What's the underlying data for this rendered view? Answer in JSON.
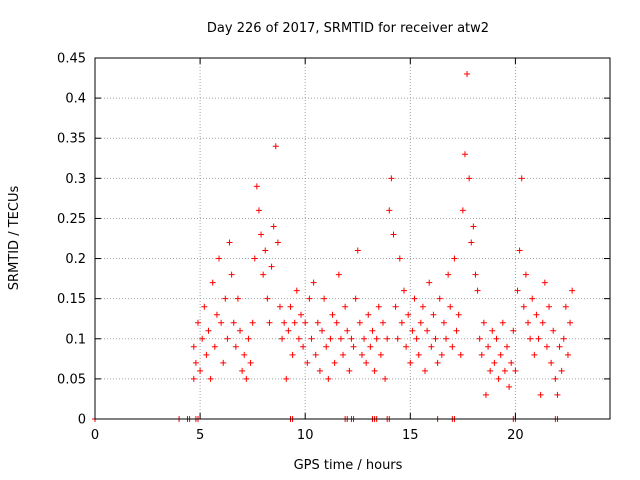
{
  "chart_data": {
    "type": "scatter",
    "title": "Day 226 of 2017, SRMTID for receiver atw2",
    "xlabel": "GPS time / hours",
    "ylabel": "SRMTID / TECUs",
    "xlim": [
      0,
      24.5
    ],
    "ylim": [
      0,
      0.45
    ],
    "x_ticks": [
      0,
      5,
      10,
      15,
      20
    ],
    "y_ticks": [
      0,
      0.05,
      0.1,
      0.15,
      0.2,
      0.25,
      0.3,
      0.35,
      0.4,
      0.45
    ],
    "x_tick_labels": [
      "0",
      "5",
      "10",
      "15",
      "20"
    ],
    "y_tick_labels": [
      "0",
      "0.05",
      "0.1",
      "0.15",
      "0.2",
      "0.25",
      "0.3",
      "0.35",
      "0.4",
      "0.45"
    ],
    "grid": true,
    "marker": "+",
    "color": "#ff0000",
    "series": [
      {
        "name": "SRMTID",
        "points": [
          [
            0.0,
            0.0
          ],
          [
            4.0,
            0.0
          ],
          [
            4.4,
            0.0
          ],
          [
            4.5,
            0.0
          ],
          [
            4.8,
            0.0
          ],
          [
            4.9,
            0.0
          ],
          [
            9.3,
            0.0
          ],
          [
            9.4,
            0.0
          ],
          [
            11.9,
            0.0
          ],
          [
            12.0,
            0.0
          ],
          [
            12.2,
            0.0
          ],
          [
            12.3,
            0.0
          ],
          [
            13.2,
            0.0
          ],
          [
            13.3,
            0.0
          ],
          [
            13.4,
            0.0
          ],
          [
            13.9,
            0.0
          ],
          [
            14.0,
            0.0
          ],
          [
            16.3,
            0.0
          ],
          [
            17.0,
            0.0
          ],
          [
            17.1,
            0.0
          ],
          [
            19.9,
            0.0
          ],
          [
            20.0,
            0.0
          ],
          [
            21.9,
            0.0
          ],
          [
            22.0,
            0.0
          ],
          [
            4.7,
            0.05
          ],
          [
            4.7,
            0.09
          ],
          [
            4.8,
            0.07
          ],
          [
            4.9,
            0.12
          ],
          [
            5.0,
            0.06
          ],
          [
            5.1,
            0.1
          ],
          [
            5.2,
            0.14
          ],
          [
            5.3,
            0.08
          ],
          [
            5.4,
            0.11
          ],
          [
            5.5,
            0.05
          ],
          [
            5.6,
            0.17
          ],
          [
            5.7,
            0.09
          ],
          [
            5.8,
            0.13
          ],
          [
            5.9,
            0.2
          ],
          [
            6.0,
            0.12
          ],
          [
            6.1,
            0.07
          ],
          [
            6.2,
            0.15
          ],
          [
            6.3,
            0.1
          ],
          [
            6.4,
            0.22
          ],
          [
            6.5,
            0.18
          ],
          [
            6.6,
            0.12
          ],
          [
            6.7,
            0.09
          ],
          [
            6.8,
            0.15
          ],
          [
            6.9,
            0.11
          ],
          [
            7.0,
            0.06
          ],
          [
            7.1,
            0.08
          ],
          [
            7.2,
            0.05
          ],
          [
            7.3,
            0.1
          ],
          [
            7.4,
            0.07
          ],
          [
            7.5,
            0.12
          ],
          [
            7.6,
            0.2
          ],
          [
            7.7,
            0.29
          ],
          [
            7.8,
            0.26
          ],
          [
            7.9,
            0.23
          ],
          [
            8.0,
            0.18
          ],
          [
            8.1,
            0.21
          ],
          [
            8.2,
            0.15
          ],
          [
            8.3,
            0.12
          ],
          [
            8.4,
            0.19
          ],
          [
            8.5,
            0.24
          ],
          [
            8.6,
            0.34
          ],
          [
            8.7,
            0.22
          ],
          [
            8.8,
            0.14
          ],
          [
            8.9,
            0.1
          ],
          [
            9.0,
            0.12
          ],
          [
            9.1,
            0.05
          ],
          [
            9.2,
            0.11
          ],
          [
            9.3,
            0.14
          ],
          [
            9.4,
            0.08
          ],
          [
            9.5,
            0.12
          ],
          [
            9.6,
            0.16
          ],
          [
            9.7,
            0.1
          ],
          [
            9.8,
            0.13
          ],
          [
            9.9,
            0.09
          ],
          [
            10.0,
            0.12
          ],
          [
            10.1,
            0.07
          ],
          [
            10.2,
            0.15
          ],
          [
            10.3,
            0.1
          ],
          [
            10.4,
            0.17
          ],
          [
            10.5,
            0.08
          ],
          [
            10.6,
            0.12
          ],
          [
            10.7,
            0.06
          ],
          [
            10.8,
            0.11
          ],
          [
            10.9,
            0.15
          ],
          [
            11.0,
            0.09
          ],
          [
            11.1,
            0.05
          ],
          [
            11.2,
            0.1
          ],
          [
            11.3,
            0.13
          ],
          [
            11.4,
            0.07
          ],
          [
            11.5,
            0.12
          ],
          [
            11.6,
            0.18
          ],
          [
            11.7,
            0.1
          ],
          [
            11.8,
            0.08
          ],
          [
            11.9,
            0.14
          ],
          [
            12.0,
            0.11
          ],
          [
            12.1,
            0.06
          ],
          [
            12.2,
            0.1
          ],
          [
            12.3,
            0.09
          ],
          [
            12.4,
            0.15
          ],
          [
            12.5,
            0.21
          ],
          [
            12.6,
            0.12
          ],
          [
            12.7,
            0.08
          ],
          [
            12.8,
            0.1
          ],
          [
            12.9,
            0.07
          ],
          [
            13.0,
            0.13
          ],
          [
            13.1,
            0.09
          ],
          [
            13.2,
            0.11
          ],
          [
            13.3,
            0.06
          ],
          [
            13.4,
            0.1
          ],
          [
            13.5,
            0.14
          ],
          [
            13.6,
            0.08
          ],
          [
            13.7,
            0.12
          ],
          [
            13.8,
            0.05
          ],
          [
            13.9,
            0.1
          ],
          [
            14.0,
            0.26
          ],
          [
            14.1,
            0.3
          ],
          [
            14.2,
            0.23
          ],
          [
            14.3,
            0.14
          ],
          [
            14.4,
            0.1
          ],
          [
            14.5,
            0.2
          ],
          [
            14.6,
            0.12
          ],
          [
            14.7,
            0.16
          ],
          [
            14.8,
            0.09
          ],
          [
            14.9,
            0.13
          ],
          [
            15.0,
            0.07
          ],
          [
            15.1,
            0.11
          ],
          [
            15.2,
            0.15
          ],
          [
            15.3,
            0.1
          ],
          [
            15.4,
            0.08
          ],
          [
            15.5,
            0.12
          ],
          [
            15.6,
            0.14
          ],
          [
            15.7,
            0.06
          ],
          [
            15.8,
            0.11
          ],
          [
            15.9,
            0.17
          ],
          [
            16.0,
            0.09
          ],
          [
            16.1,
            0.13
          ],
          [
            16.2,
            0.1
          ],
          [
            16.3,
            0.07
          ],
          [
            16.4,
            0.15
          ],
          [
            16.5,
            0.08
          ],
          [
            16.6,
            0.12
          ],
          [
            16.7,
            0.1
          ],
          [
            16.8,
            0.18
          ],
          [
            16.9,
            0.14
          ],
          [
            17.0,
            0.09
          ],
          [
            17.1,
            0.2
          ],
          [
            17.2,
            0.11
          ],
          [
            17.3,
            0.13
          ],
          [
            17.4,
            0.08
          ],
          [
            17.5,
            0.26
          ],
          [
            17.6,
            0.33
          ],
          [
            17.7,
            0.43
          ],
          [
            17.8,
            0.3
          ],
          [
            17.9,
            0.22
          ],
          [
            18.0,
            0.24
          ],
          [
            18.1,
            0.18
          ],
          [
            18.2,
            0.16
          ],
          [
            18.3,
            0.1
          ],
          [
            18.4,
            0.08
          ],
          [
            18.5,
            0.12
          ],
          [
            18.6,
            0.03
          ],
          [
            18.7,
            0.09
          ],
          [
            18.8,
            0.06
          ],
          [
            18.9,
            0.11
          ],
          [
            19.0,
            0.07
          ],
          [
            19.1,
            0.1
          ],
          [
            19.2,
            0.05
          ],
          [
            19.3,
            0.08
          ],
          [
            19.4,
            0.12
          ],
          [
            19.5,
            0.06
          ],
          [
            19.6,
            0.09
          ],
          [
            19.7,
            0.04
          ],
          [
            19.8,
            0.07
          ],
          [
            19.9,
            0.11
          ],
          [
            20.0,
            0.06
          ],
          [
            20.1,
            0.16
          ],
          [
            20.2,
            0.21
          ],
          [
            20.3,
            0.3
          ],
          [
            20.4,
            0.14
          ],
          [
            20.5,
            0.18
          ],
          [
            20.6,
            0.12
          ],
          [
            20.7,
            0.1
          ],
          [
            20.8,
            0.15
          ],
          [
            20.9,
            0.08
          ],
          [
            21.0,
            0.13
          ],
          [
            21.1,
            0.1
          ],
          [
            21.2,
            0.03
          ],
          [
            21.3,
            0.12
          ],
          [
            21.4,
            0.17
          ],
          [
            21.5,
            0.09
          ],
          [
            21.6,
            0.14
          ],
          [
            21.7,
            0.07
          ],
          [
            21.8,
            0.11
          ],
          [
            21.9,
            0.05
          ],
          [
            22.0,
            0.03
          ],
          [
            22.1,
            0.09
          ],
          [
            22.2,
            0.06
          ],
          [
            22.3,
            0.1
          ],
          [
            22.4,
            0.14
          ],
          [
            22.5,
            0.08
          ],
          [
            22.6,
            0.12
          ],
          [
            22.7,
            0.16
          ]
        ]
      }
    ]
  }
}
